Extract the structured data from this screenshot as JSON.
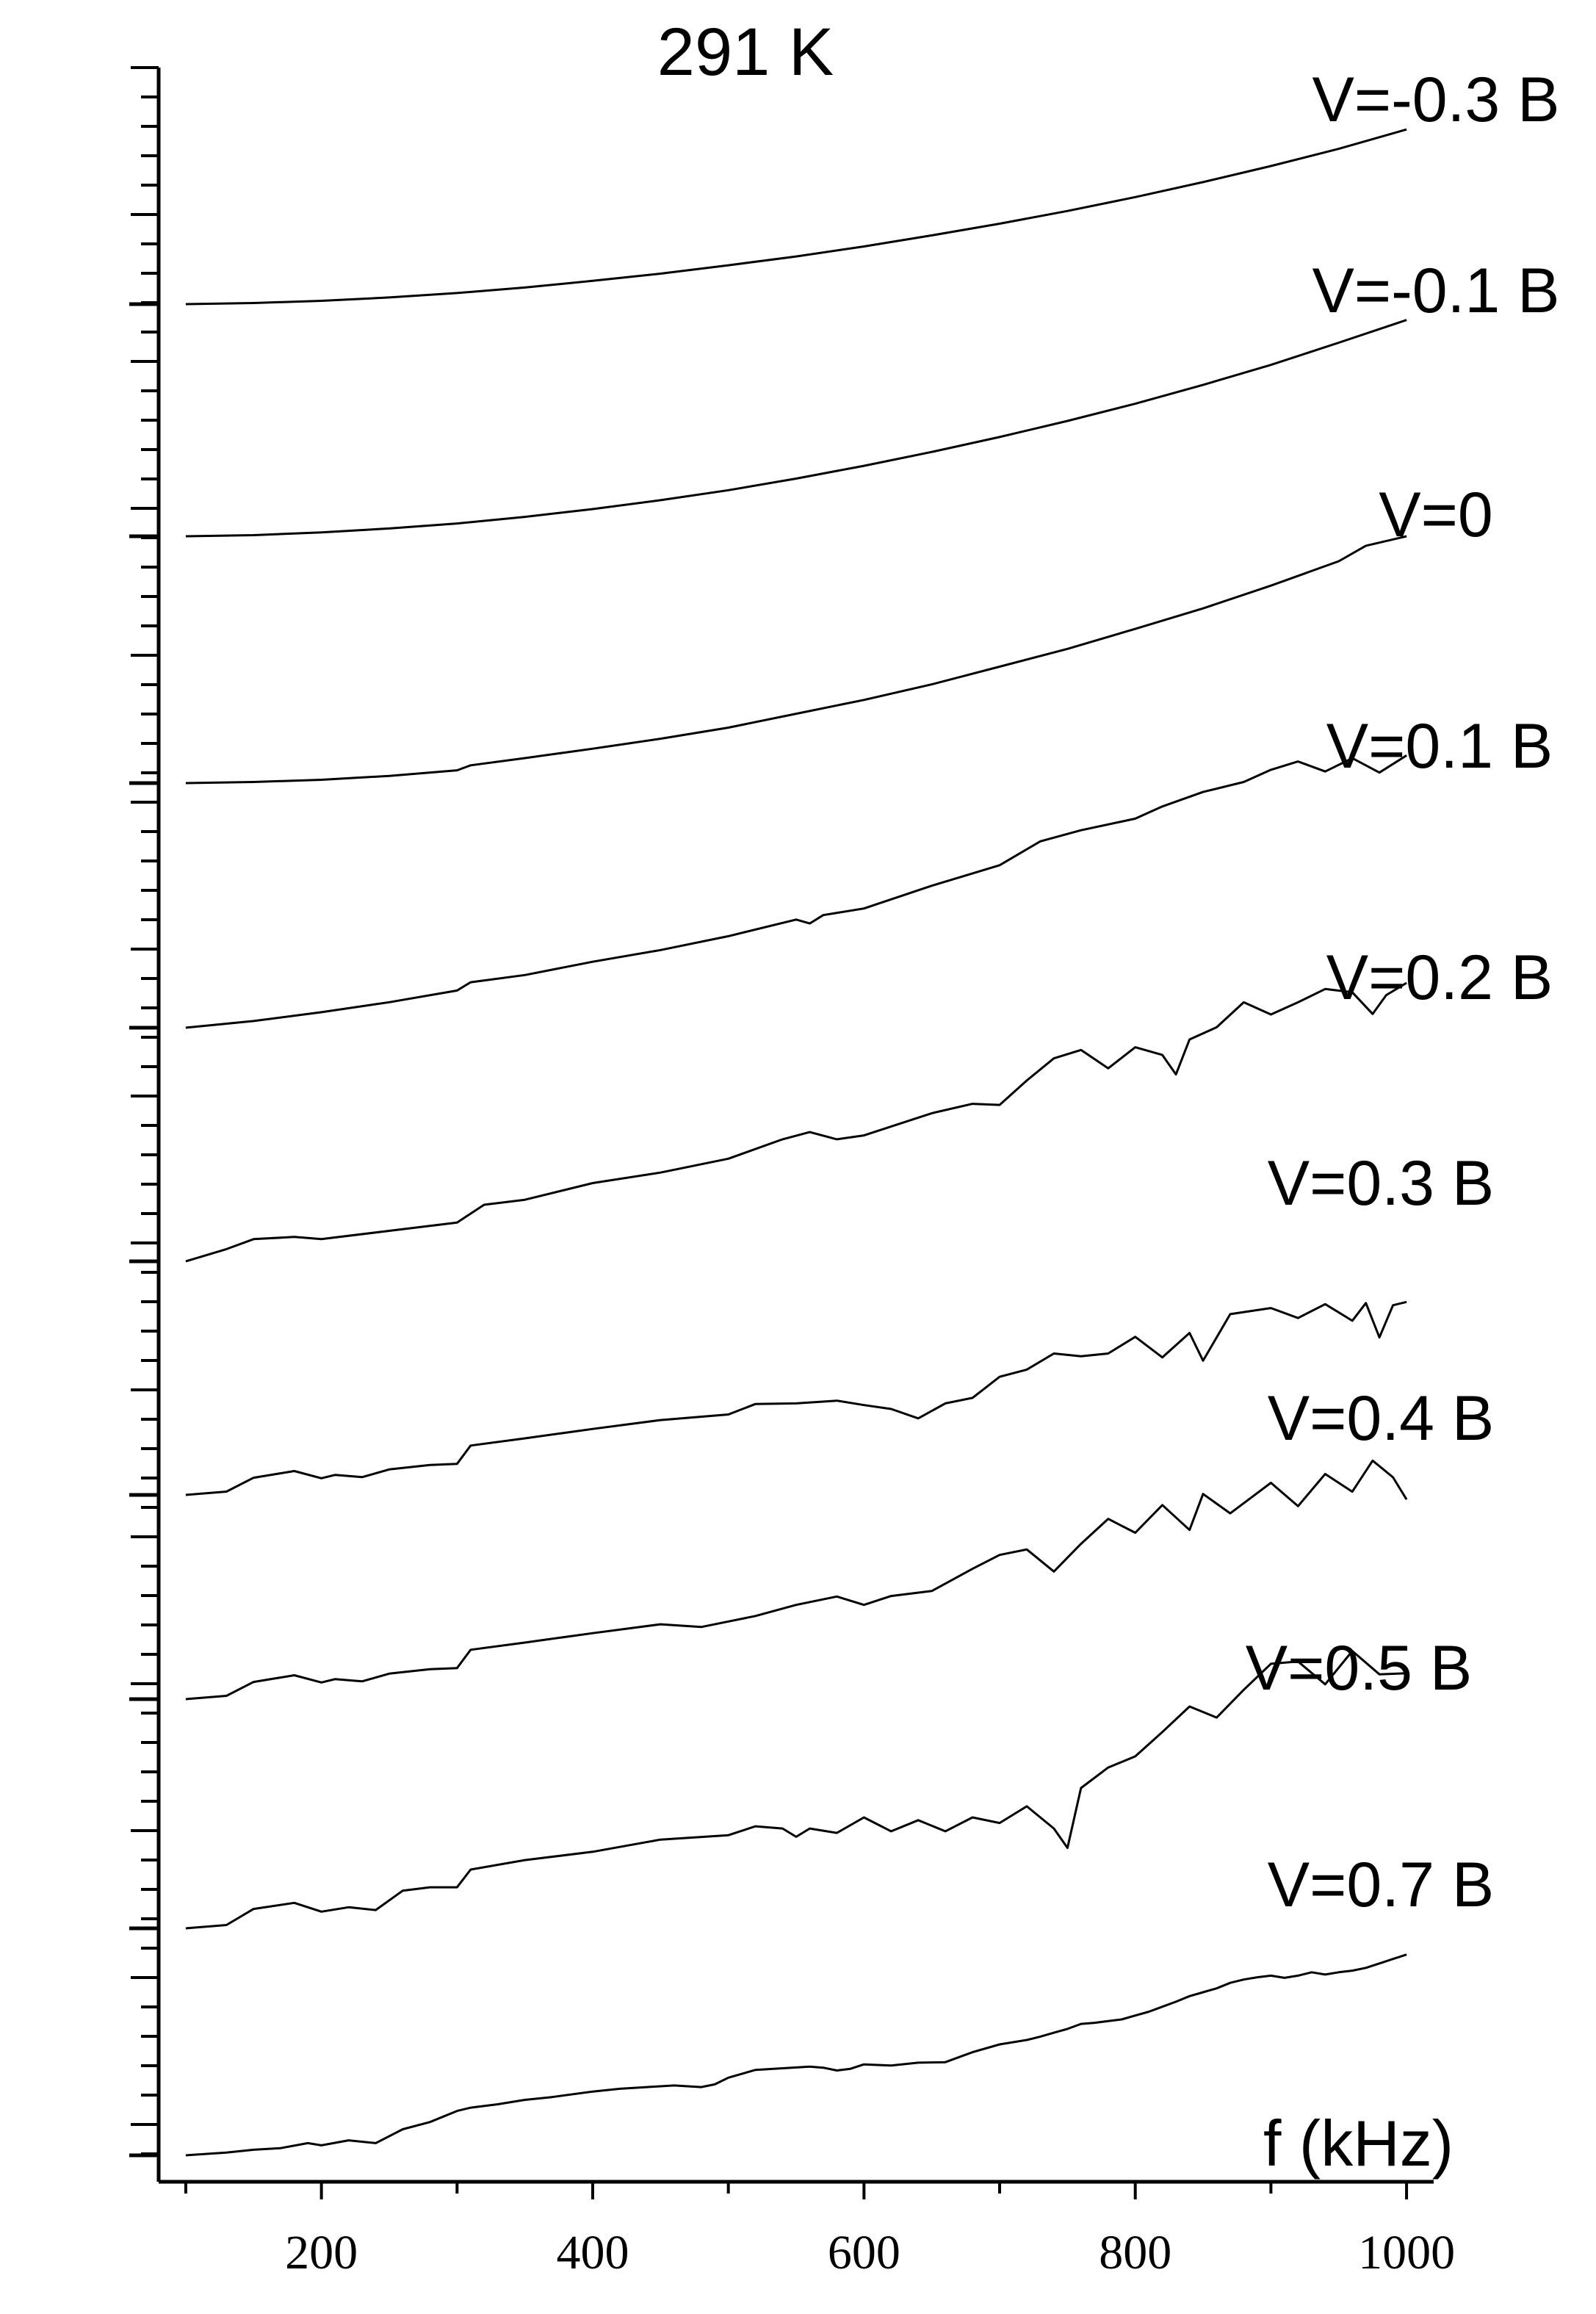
{
  "chart_data": {
    "type": "line",
    "title": "291 K",
    "xlabel": "f (kHz)",
    "ylabel": "",
    "xlim": [
      80,
      1020
    ],
    "x_ticks": [
      200,
      400,
      600,
      800,
      1000
    ],
    "x_tick_labels": [
      "200",
      "400",
      "600",
      "800",
      "1000"
    ],
    "grid": false,
    "y_axis_tick_labels": false,
    "series": [
      {
        "name": "V=-0.3 B",
        "label_pos": "top-right",
        "x": [
          100,
          150,
          200,
          250,
          300,
          350,
          400,
          450,
          500,
          550,
          600,
          650,
          700,
          750,
          800,
          850,
          900,
          950,
          1000
        ],
        "y": [
          0.0,
          0.2,
          0.6,
          1.2,
          2.0,
          3.0,
          4.2,
          5.5,
          7.0,
          8.6,
          10.4,
          12.4,
          14.5,
          16.8,
          19.3,
          22.0,
          24.9,
          28.0,
          31.5
        ]
      },
      {
        "name": "V=-0.1 B",
        "x": [
          100,
          150,
          200,
          250,
          300,
          350,
          400,
          450,
          500,
          550,
          600,
          650,
          700,
          750,
          800,
          850,
          900,
          950,
          1000
        ],
        "y": [
          0.0,
          0.2,
          0.7,
          1.4,
          2.3,
          3.5,
          4.9,
          6.5,
          8.3,
          10.4,
          12.7,
          15.2,
          17.9,
          20.8,
          23.9,
          27.3,
          30.9,
          34.9,
          39.0
        ]
      },
      {
        "name": "V=0",
        "x": [
          100,
          150,
          200,
          250,
          300,
          310,
          350,
          400,
          450,
          500,
          550,
          600,
          650,
          700,
          750,
          800,
          850,
          900,
          950,
          970,
          1000
        ],
        "y": [
          0.0,
          0.2,
          0.6,
          1.3,
          2.3,
          3.2,
          4.5,
          6.2,
          8.0,
          10.0,
          12.5,
          15.0,
          17.8,
          21.0,
          24.2,
          27.8,
          31.5,
          35.6,
          40.0,
          42.8,
          44.5
        ]
      },
      {
        "name": "V=0.1 B",
        "x": [
          100,
          150,
          200,
          250,
          300,
          310,
          350,
          400,
          450,
          500,
          550,
          560,
          570,
          600,
          650,
          700,
          730,
          760,
          800,
          820,
          850,
          880,
          900,
          920,
          940,
          960,
          980,
          1000
        ],
        "y": [
          0.0,
          1.2,
          2.8,
          4.6,
          6.7,
          8.2,
          9.5,
          11.9,
          14.0,
          16.5,
          19.5,
          18.8,
          20.3,
          21.5,
          25.6,
          29.3,
          33.6,
          35.6,
          37.7,
          39.9,
          42.5,
          44.3,
          46.5,
          48.0,
          46.2,
          48.6,
          46.0,
          49.1
        ]
      },
      {
        "name": "V=0.2 B",
        "x": [
          100,
          130,
          150,
          180,
          200,
          250,
          300,
          320,
          350,
          400,
          450,
          500,
          540,
          560,
          580,
          600,
          650,
          680,
          700,
          720,
          740,
          760,
          780,
          800,
          820,
          830,
          840,
          860,
          880,
          900,
          920,
          940,
          960,
          975,
          985,
          1000
        ],
        "y": [
          0.0,
          2.2,
          4.0,
          4.4,
          4.0,
          5.5,
          7.0,
          10.2,
          11.1,
          14.1,
          16.0,
          18.5,
          22.0,
          23.3,
          22.0,
          22.7,
          26.7,
          28.4,
          28.2,
          32.6,
          36.6,
          38.1,
          34.8,
          38.6,
          37.2,
          33.7,
          40.0,
          42.2,
          46.7,
          44.5,
          46.7,
          49.1,
          48.5,
          44.6,
          48.0,
          50.2
        ]
      },
      {
        "name": "V=0.3 B",
        "x": [
          100,
          130,
          150,
          180,
          200,
          210,
          230,
          250,
          280,
          300,
          310,
          350,
          400,
          450,
          500,
          520,
          550,
          580,
          600,
          620,
          640,
          660,
          680,
          700,
          720,
          740,
          760,
          780,
          800,
          820,
          840,
          850,
          870,
          900,
          920,
          940,
          960,
          970,
          980,
          990,
          1000
        ],
        "y": [
          0.0,
          0.6,
          3.1,
          4.3,
          3.0,
          3.6,
          3.2,
          4.6,
          5.4,
          5.6,
          8.9,
          10.2,
          11.9,
          13.5,
          14.5,
          16.4,
          16.5,
          17.0,
          16.2,
          15.5,
          13.8,
          16.5,
          17.5,
          21.3,
          22.6,
          25.5,
          25.0,
          25.5,
          28.5,
          24.8,
          29.2,
          24.2,
          32.6,
          33.7,
          31.9,
          34.4,
          31.4,
          34.6,
          28.4,
          34.2,
          34.8
        ]
      },
      {
        "name": "V=0.4 B",
        "x": [
          100,
          130,
          150,
          180,
          200,
          210,
          230,
          250,
          280,
          300,
          310,
          350,
          400,
          450,
          480,
          500,
          520,
          550,
          580,
          600,
          620,
          650,
          680,
          700,
          720,
          740,
          760,
          780,
          800,
          820,
          840,
          850,
          870,
          900,
          920,
          940,
          960,
          975,
          990,
          1000
        ],
        "y": [
          0.0,
          0.6,
          3.1,
          4.3,
          3.0,
          3.6,
          3.2,
          4.6,
          5.4,
          5.6,
          8.9,
          10.2,
          11.9,
          13.5,
          13.0,
          14.0,
          15.0,
          17.0,
          18.5,
          17.0,
          18.6,
          19.5,
          23.5,
          26.0,
          27.0,
          23.0,
          28.0,
          32.5,
          30.0,
          35.0,
          30.5,
          37.0,
          33.5,
          39.0,
          34.8,
          40.6,
          37.4,
          43.0,
          40.0,
          36.0
        ]
      },
      {
        "name": "V=0.5 B",
        "x": [
          100,
          130,
          150,
          180,
          200,
          220,
          240,
          260,
          280,
          300,
          310,
          350,
          400,
          450,
          500,
          520,
          540,
          550,
          560,
          580,
          600,
          620,
          640,
          660,
          680,
          700,
          720,
          740,
          750,
          760,
          780,
          800,
          820,
          840,
          860,
          880,
          900,
          920,
          940,
          960,
          980,
          1000
        ],
        "y": [
          0.0,
          0.6,
          3.5,
          4.6,
          3.0,
          3.8,
          3.3,
          6.8,
          7.4,
          7.4,
          10.6,
          12.3,
          13.8,
          16.0,
          16.8,
          18.4,
          18.0,
          16.5,
          18.0,
          17.2,
          20.0,
          17.5,
          19.5,
          17.5,
          20.0,
          19.0,
          22.0,
          18.0,
          14.5,
          25.3,
          29.0,
          31.0,
          35.4,
          40.0,
          38.0,
          43.0,
          47.7,
          48.1,
          44.0,
          50.0,
          45.8,
          46.0
        ]
      },
      {
        "name": "V=0.7 B",
        "x": [
          100,
          130,
          150,
          170,
          190,
          200,
          220,
          240,
          260,
          280,
          300,
          310,
          330,
          350,
          370,
          400,
          420,
          440,
          460,
          480,
          490,
          500,
          520,
          540,
          560,
          570,
          580,
          590,
          600,
          620,
          640,
          660,
          680,
          700,
          720,
          730,
          740,
          750,
          760,
          770,
          780,
          790,
          800,
          810,
          820,
          830,
          840,
          850,
          860,
          870,
          880,
          890,
          900,
          910,
          920,
          930,
          940,
          950,
          960,
          970,
          980,
          990,
          1000
        ],
        "y": [
          0.0,
          0.5,
          1.0,
          1.3,
          2.2,
          1.8,
          2.7,
          2.2,
          4.7,
          6.0,
          8.0,
          8.6,
          9.2,
          10.0,
          10.5,
          11.5,
          12.0,
          12.3,
          12.6,
          12.3,
          12.8,
          14.0,
          15.4,
          15.7,
          16.0,
          15.8,
          15.3,
          15.6,
          16.4,
          16.2,
          16.7,
          16.8,
          18.6,
          20.0,
          20.8,
          21.4,
          22.1,
          22.8,
          23.7,
          23.9,
          24.2,
          24.5,
          25.2,
          25.9,
          26.8,
          27.7,
          28.7,
          29.4,
          30.1,
          31.1,
          31.7,
          32.1,
          32.4,
          32.0,
          32.4,
          33.0,
          32.6,
          33.0,
          33.3,
          33.8,
          34.6,
          35.4,
          36.2
        ]
      }
    ]
  }
}
